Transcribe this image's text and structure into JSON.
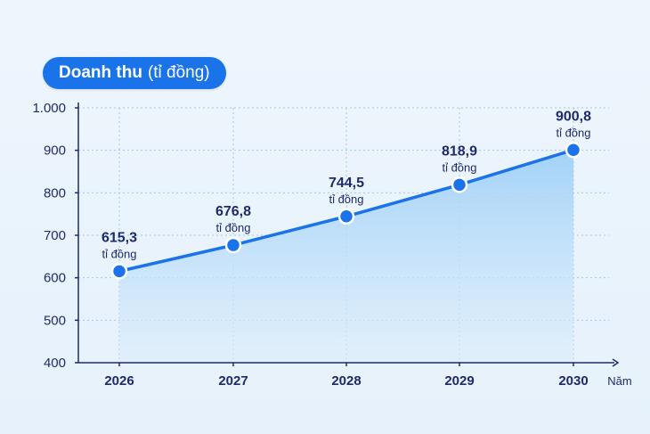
{
  "title_main": "Doanh thu",
  "title_unit": "(tỉ đồng)",
  "chart_data": {
    "type": "line",
    "title": "Doanh thu (tỉ đồng)",
    "xlabel": "Năm",
    "ylabel": "",
    "categories": [
      "2026",
      "2027",
      "2028",
      "2029",
      "2030"
    ],
    "series": [
      {
        "values": [
          615.3,
          676.8,
          744.5,
          818.9,
          900.8
        ]
      }
    ],
    "data_labels": [
      "615,3",
      "676,8",
      "744,5",
      "818,9",
      "900,8"
    ],
    "data_label_unit": "tỉ đồng",
    "ylim": [
      400,
      1000
    ],
    "yticks": [
      400,
      500,
      600,
      700,
      800,
      900,
      1000
    ],
    "ytick_labels": [
      "400",
      "500",
      "600",
      "700",
      "800",
      "900",
      "1.000"
    ],
    "grid": true,
    "colors": {
      "line": "#1a73e8",
      "marker": "#1a73e8",
      "area_top": "#9fd0f7",
      "area_bottom": "#dcedfb",
      "axis": "#1f2a6b",
      "label": "#1f2a6b",
      "grid": "#9ec8ec"
    }
  }
}
